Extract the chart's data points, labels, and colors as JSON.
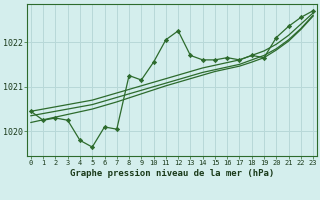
{
  "title": "Graphe pression niveau de la mer (hPa)",
  "bg_color": "#d4eeed",
  "grid_color": "#b8d8d8",
  "line_color": "#2d6b2d",
  "marker_color": "#2d6b2d",
  "hours": [
    0,
    1,
    2,
    3,
    4,
    5,
    6,
    7,
    8,
    9,
    10,
    11,
    12,
    13,
    14,
    15,
    16,
    17,
    18,
    19,
    20,
    21,
    22,
    23
  ],
  "pressure_main": [
    1020.45,
    1020.25,
    1020.3,
    1020.25,
    1019.8,
    1019.65,
    1020.1,
    1020.05,
    1021.25,
    1021.15,
    1021.55,
    1022.05,
    1022.25,
    1021.7,
    1021.6,
    1021.6,
    1021.65,
    1021.6,
    1021.7,
    1021.65,
    1022.1,
    1022.35,
    1022.55,
    1022.7
  ],
  "pressure_trend1": [
    1020.45,
    1020.5,
    1020.55,
    1020.6,
    1020.65,
    1020.7,
    1020.78,
    1020.86,
    1020.94,
    1021.02,
    1021.1,
    1021.18,
    1021.26,
    1021.34,
    1021.42,
    1021.48,
    1021.54,
    1021.6,
    1021.7,
    1021.8,
    1021.95,
    1022.15,
    1022.4,
    1022.65
  ],
  "pressure_trend2": [
    1020.35,
    1020.4,
    1020.45,
    1020.5,
    1020.55,
    1020.6,
    1020.68,
    1020.76,
    1020.84,
    1020.92,
    1021.0,
    1021.08,
    1021.16,
    1021.24,
    1021.32,
    1021.38,
    1021.44,
    1021.5,
    1021.6,
    1021.7,
    1021.85,
    1022.05,
    1022.3,
    1022.6
  ],
  "pressure_trend3": [
    1020.2,
    1020.26,
    1020.32,
    1020.38,
    1020.44,
    1020.5,
    1020.58,
    1020.66,
    1020.75,
    1020.84,
    1020.93,
    1021.02,
    1021.1,
    1021.18,
    1021.26,
    1021.34,
    1021.4,
    1021.46,
    1021.55,
    1021.65,
    1021.82,
    1022.02,
    1022.28,
    1022.58
  ],
  "ylim": [
    1019.45,
    1022.85
  ],
  "yticks": [
    1020,
    1021,
    1022
  ],
  "xlim": [
    -0.3,
    23.3
  ],
  "xtick_fontsize": 5.0,
  "ytick_fontsize": 6.0,
  "label_fontsize": 6.5
}
